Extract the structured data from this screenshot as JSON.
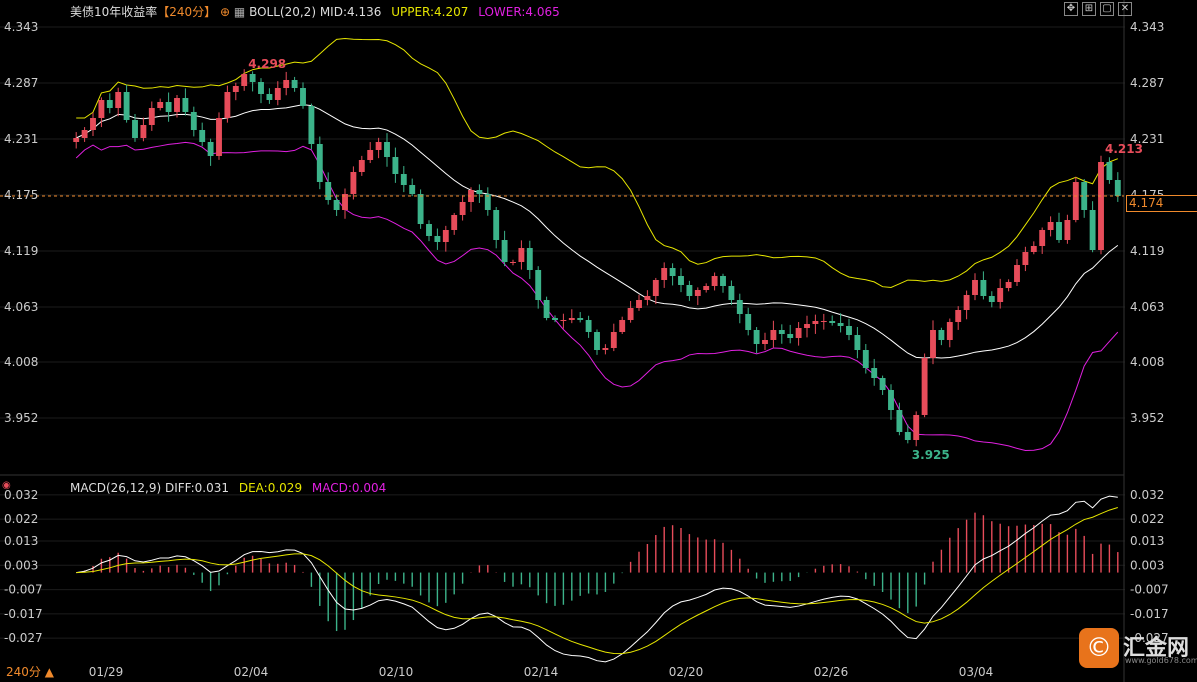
{
  "header": {
    "title": "美债10年收益率",
    "period": "【240分】",
    "indicator": "BOLL(20,2)",
    "mid": "MID:4.136",
    "upper": "UPPER:4.207",
    "lower": "LOWER:4.065"
  },
  "macd_header": {
    "name": "MACD(26,12,9)",
    "diff": "DIFF:0.031",
    "dea": "DEA:0.029",
    "macd": "MACD:0.004"
  },
  "footer": {
    "period_label": "240分 ▲"
  },
  "current_price_tag": "4.174",
  "logo": {
    "name": "汇金网",
    "url": "www.gold678.com"
  },
  "colors": {
    "up": "#e74c5a",
    "down": "#3cb38a",
    "mid": "#ffffff",
    "upper": "#e6e600",
    "lower": "#e020e0",
    "dea": "#e6e600",
    "diff": "#ffffff",
    "accent": "#f08a2c"
  },
  "chart_data": [
    {
      "type": "candlestick",
      "title": "美债10年收益率",
      "y_ticks": [
        "4.343",
        "4.287",
        "4.231",
        "4.175",
        "4.119",
        "4.063",
        "4.008",
        "3.952"
      ],
      "ylim": [
        3.91,
        4.35
      ],
      "x_ticks": [
        "01/29",
        "02/04",
        "02/10",
        "02/14",
        "02/20",
        "02/26",
        "03/04"
      ],
      "annotations": [
        {
          "label": "4.298",
          "value": 4.298
        },
        {
          "label": "4.213",
          "value": 4.213
        },
        {
          "label": "3.925",
          "value": 3.925
        }
      ],
      "current_value": 4.174,
      "price_path": [
        4.232,
        4.24,
        4.252,
        4.27,
        4.262,
        4.278,
        4.25,
        4.232,
        4.245,
        4.262,
        4.268,
        4.258,
        4.272,
        4.258,
        4.24,
        4.228,
        4.214,
        4.252,
        4.278,
        4.284,
        4.296,
        4.288,
        4.276,
        4.27,
        4.282,
        4.29,
        4.282,
        4.264,
        4.226,
        4.188,
        4.17,
        4.16,
        4.176,
        4.198,
        4.21,
        4.22,
        4.228,
        4.213,
        4.196,
        4.185,
        4.176,
        4.146,
        4.134,
        4.128,
        4.14,
        4.155,
        4.168,
        4.18,
        4.176,
        4.16,
        4.13,
        4.108,
        4.108,
        4.122,
        4.1,
        4.07,
        4.052,
        4.05,
        4.05,
        4.052,
        4.05,
        4.038,
        4.02,
        4.022,
        4.038,
        4.05,
        4.062,
        4.07,
        4.074,
        4.09,
        4.102,
        4.094,
        4.085,
        4.074,
        4.08,
        4.084,
        4.094,
        4.084,
        4.07,
        4.056,
        4.04,
        4.026,
        4.03,
        4.04,
        4.036,
        4.032,
        4.042,
        4.046,
        4.049,
        4.049,
        4.047,
        4.044,
        4.035,
        4.02,
        4.002,
        3.992,
        3.98,
        3.96,
        3.938,
        3.93,
        3.955,
        4.012,
        4.04,
        4.03,
        4.048,
        4.06,
        4.075,
        4.09,
        4.074,
        4.068,
        4.082,
        4.088,
        4.105,
        4.118,
        4.124,
        4.14,
        4.148,
        4.13,
        4.15,
        4.188,
        4.16,
        4.12,
        4.208,
        4.19,
        4.174
      ]
    },
    {
      "type": "macd",
      "title": "MACD(26,12,9)",
      "y_ticks": [
        "0.032",
        "0.022",
        "0.013",
        "0.003",
        "-0.007",
        "-0.017",
        "-0.027"
      ],
      "ylim": [
        -0.036,
        0.034
      ],
      "diff_last": 0.031,
      "dea_last": 0.029,
      "macd_last": 0.004
    }
  ]
}
